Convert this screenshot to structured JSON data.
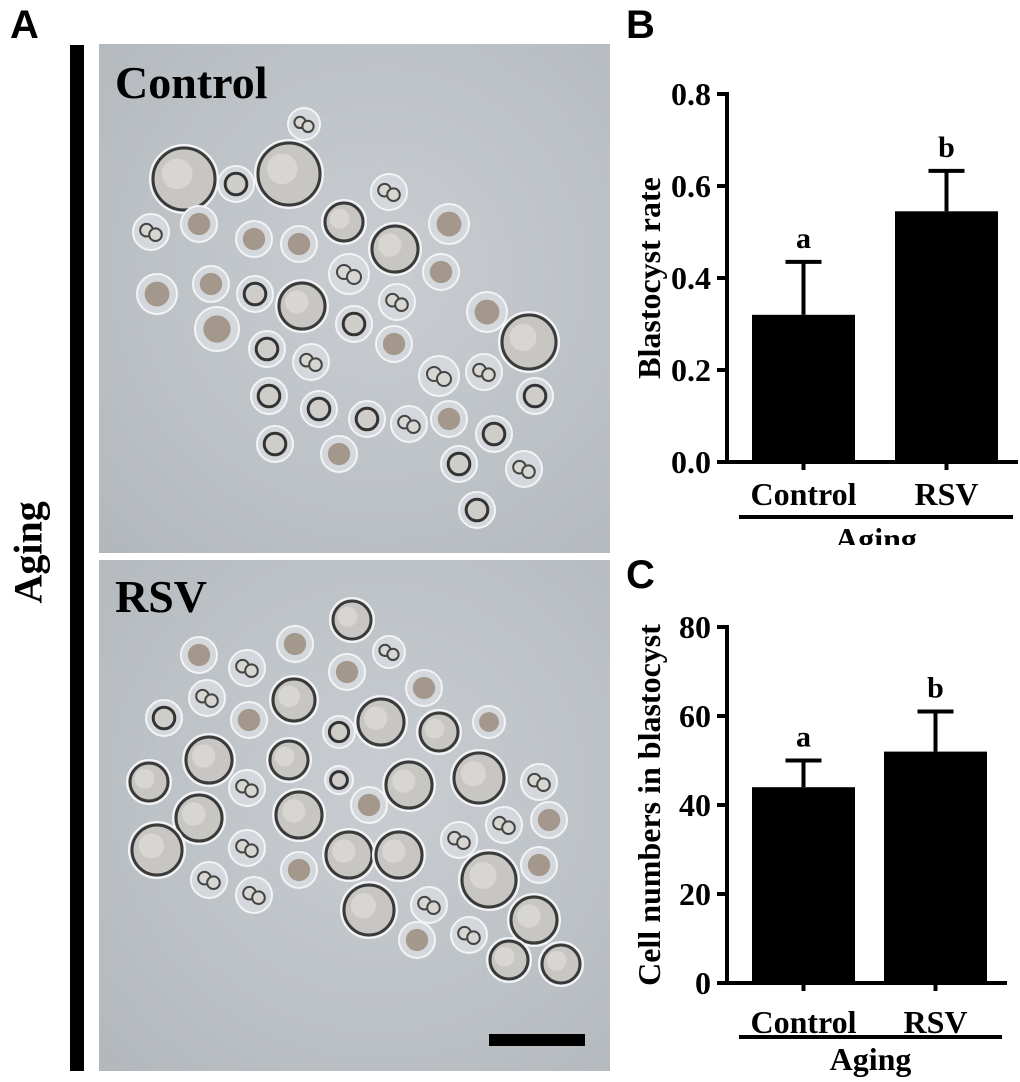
{
  "panels": {
    "a": "A",
    "b": "B",
    "c": "C"
  },
  "side_label": "Aging",
  "micrographs": [
    {
      "label": "Control"
    },
    {
      "label": "RSV"
    }
  ],
  "chart_data": [
    {
      "type": "bar",
      "categories": [
        "Control",
        "RSV"
      ],
      "values": [
        0.32,
        0.545
      ],
      "error_bars": [
        0.115,
        0.088
      ],
      "significance_letters": [
        "a",
        "b"
      ],
      "title": "",
      "xlabel": "Aging",
      "ylabel": "Blastocyst rate",
      "ylim": [
        0.0,
        0.8
      ],
      "yticks": [
        "0.0",
        "0.2",
        "0.4",
        "0.6",
        "0.8"
      ]
    },
    {
      "type": "bar",
      "categories": [
        "Control",
        "RSV"
      ],
      "values": [
        44,
        52
      ],
      "error_bars": [
        6,
        9
      ],
      "significance_letters": [
        "a",
        "b"
      ],
      "title": "",
      "xlabel": "Aging",
      "ylabel": "Cell numbers in blastocyst",
      "ylim": [
        0,
        80
      ],
      "yticks": [
        "0",
        "20",
        "40",
        "60",
        "80"
      ]
    }
  ]
}
